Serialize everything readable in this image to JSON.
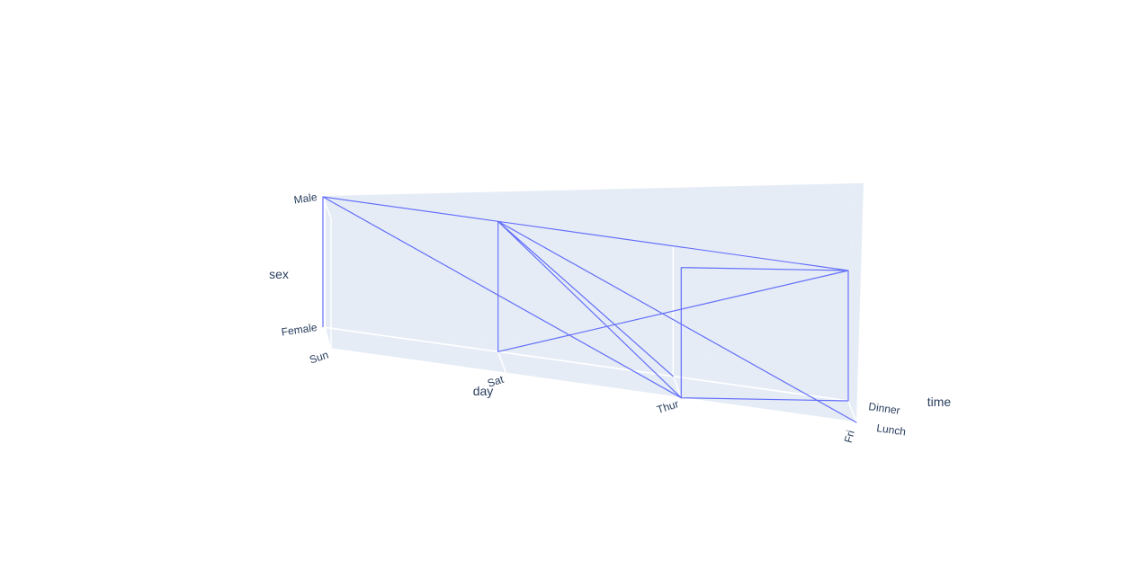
{
  "chart_data": {
    "type": "line3d",
    "axes": {
      "x": {
        "title": "day",
        "categories": [
          "Sun",
          "Sat",
          "Thur",
          "Fri"
        ]
      },
      "y": {
        "title": "time",
        "categories": [
          "Lunch",
          "Dinner"
        ]
      },
      "z": {
        "title": "sex",
        "categories": [
          "Female",
          "Male"
        ]
      }
    },
    "series": [
      {
        "color": "#636efa",
        "points": [
          {
            "day": "Sun",
            "time": "Dinner",
            "sex": "Female"
          },
          {
            "day": "Sun",
            "time": "Dinner",
            "sex": "Male"
          },
          {
            "day": "Thur",
            "time": "Lunch",
            "sex": "Female"
          },
          {
            "day": "Sat",
            "time": "Dinner",
            "sex": "Male"
          },
          {
            "day": "Sun",
            "time": "Dinner",
            "sex": "Male"
          },
          {
            "day": "Sat",
            "time": "Dinner",
            "sex": "Male"
          },
          {
            "day": "Sat",
            "time": "Dinner",
            "sex": "Female"
          },
          {
            "day": "Fri",
            "time": "Dinner",
            "sex": "Male"
          },
          {
            "day": "Sat",
            "time": "Dinner",
            "sex": "Male"
          },
          {
            "day": "Thur",
            "time": "Dinner",
            "sex": "Female"
          },
          {
            "day": "Sat",
            "time": "Dinner",
            "sex": "Male"
          },
          {
            "day": "Fri",
            "time": "Lunch",
            "sex": "Female"
          },
          {
            "day": "Sat",
            "time": "Dinner",
            "sex": "Male"
          },
          {
            "day": "Thur",
            "time": "Lunch",
            "sex": "Female"
          },
          {
            "day": "Thur",
            "time": "Lunch",
            "sex": "Male"
          },
          {
            "day": "Fri",
            "time": "Dinner",
            "sex": "Male"
          },
          {
            "day": "Fri",
            "time": "Dinner",
            "sex": "Female"
          },
          {
            "day": "Thur",
            "time": "Lunch",
            "sex": "Female"
          },
          {
            "day": "Sun",
            "time": "Dinner",
            "sex": "Male"
          }
        ]
      }
    ]
  }
}
